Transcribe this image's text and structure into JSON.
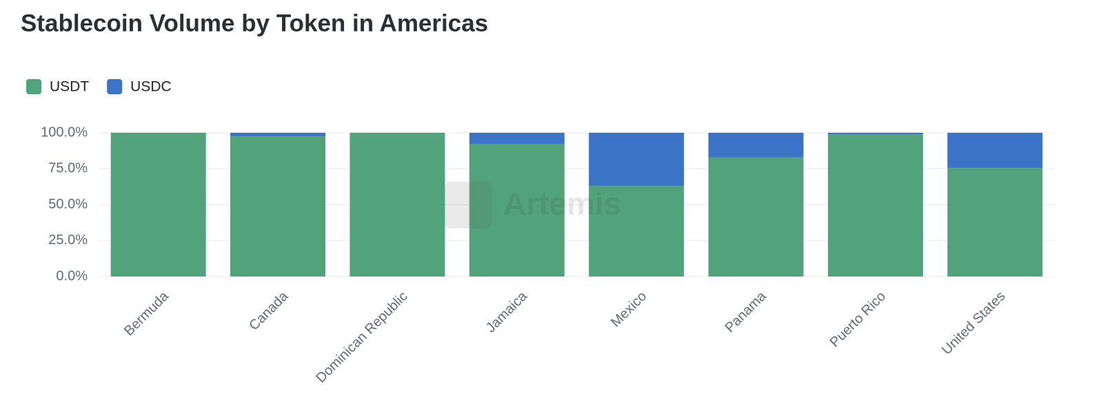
{
  "chart_data": {
    "type": "stacked_bar",
    "title": "Stablecoin Volume by Token in Americas",
    "watermark": "Artemis",
    "categories": [
      "Bermuda",
      "Canada",
      "Dominican Republic",
      "Jamaica",
      "Mexico",
      "Panama",
      "Puerto Rico",
      "United States"
    ],
    "series": [
      {
        "name": "USDT",
        "color": "#52a37c",
        "values": [
          100,
          97.5,
          100,
          92,
          63,
          83,
          99,
          75.5
        ]
      },
      {
        "name": "USDC",
        "color": "#3b73c6",
        "values": [
          0,
          2.5,
          0,
          8,
          37,
          17,
          1,
          24.5
        ]
      }
    ],
    "ylim": [
      0,
      100
    ],
    "yticks": [
      {
        "value": 0,
        "label": "0.0%"
      },
      {
        "value": 25,
        "label": "25.0%"
      },
      {
        "value": 50,
        "label": "50.0%"
      },
      {
        "value": 75,
        "label": "75.0%"
      },
      {
        "value": 100,
        "label": "100.0%"
      }
    ],
    "grid": true
  }
}
